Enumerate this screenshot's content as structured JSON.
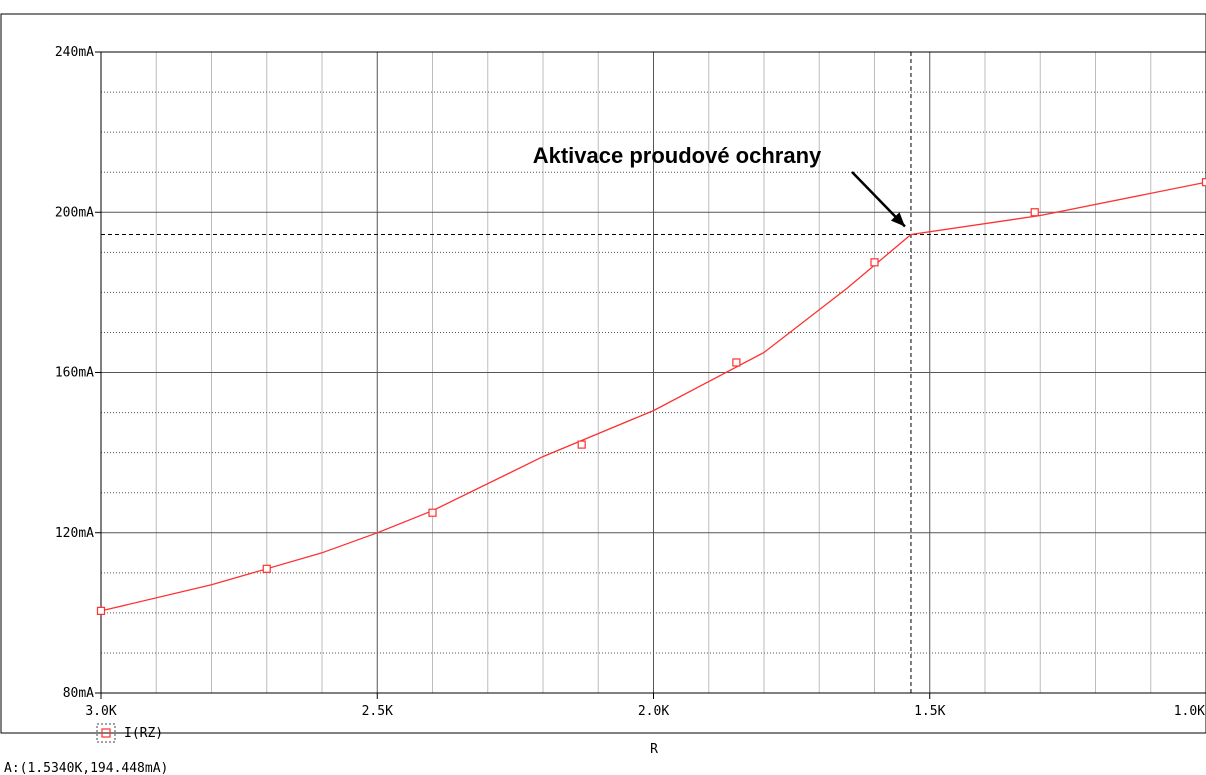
{
  "chart_data": {
    "type": "line",
    "xlabel": "R",
    "ylabel": "",
    "xlim": [
      3000,
      1000
    ],
    "ylim": [
      80,
      240
    ],
    "x_axis_reversed": true,
    "x_ticks": [
      3000,
      2500,
      2000,
      1500,
      1000
    ],
    "x_tick_labels": [
      "3.0K",
      "2.5K",
      "2.0K",
      "1.5K",
      "1.0K"
    ],
    "y_ticks": [
      80,
      120,
      160,
      200,
      240
    ],
    "y_tick_labels": [
      "80mA",
      "120mA",
      "160mA",
      "200mA",
      "240mA"
    ],
    "grid": true,
    "legend_position": "bottom-left",
    "series": [
      {
        "name": "I(RZ)",
        "color": "#ff3030",
        "marker": "square",
        "x": [
          3000,
          2800,
          2600,
          2500,
          2400,
          2200,
          2000,
          1800,
          1650,
          1534,
          1300,
          1000
        ],
        "y": [
          100.5,
          107,
          115,
          120,
          125.5,
          139,
          150.5,
          165,
          181,
          194.45,
          199.2,
          207.5
        ],
        "marker_x": [
          3000,
          2700,
          2400,
          2130,
          1850,
          1600,
          1310,
          1000
        ],
        "marker_y": [
          100.5,
          111,
          125,
          142,
          162.5,
          187.5,
          200,
          207.5
        ]
      }
    ],
    "cursor": {
      "x": 1534,
      "y": 194.448
    },
    "annotation": {
      "text": "Aktivace proudové ochrany",
      "target_x": 1534,
      "target_y": 194.448
    }
  },
  "status": {
    "cursor_readout": "A:(1.5340K,194.448mA)"
  }
}
